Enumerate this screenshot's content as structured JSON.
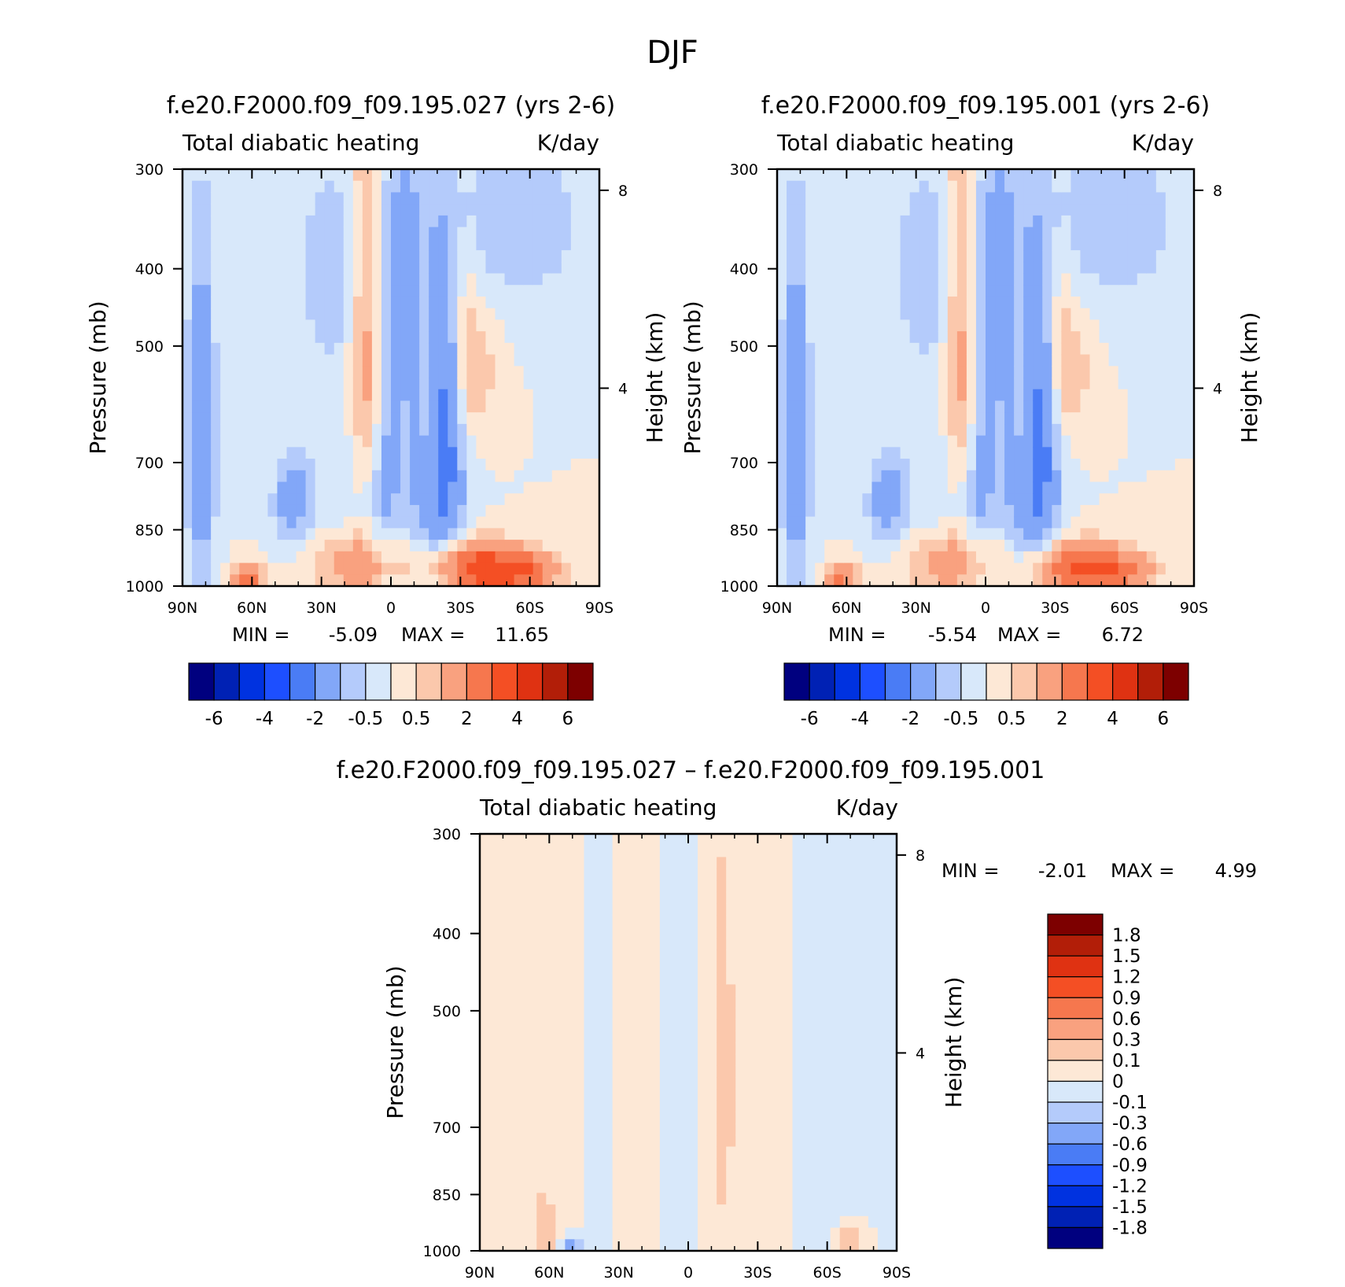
{
  "figure_title": "DJF",
  "colors": {
    "scale": [
      "#00007f",
      "#0021b4",
      "#0032e0",
      "#1d4fff",
      "#4a7cf5",
      "#82a7f8",
      "#b4cbfb",
      "#d8e8fa",
      "#fde8d6",
      "#fbc8ac",
      "#f9a17f",
      "#f6774e",
      "#f44f24",
      "#df3212",
      "#b21e08",
      "#7d0000"
    ]
  },
  "chart_data": [
    {
      "type": "heatmap",
      "title": "f.e20.F2000.f09_f09.195.027 (yrs 2-6)",
      "left_label": "Total diabatic heating",
      "right_label": "K/day",
      "xlabel": "",
      "ylabel": "Pressure (mb)",
      "y2label": "Height (km)",
      "x_ticks": [
        "90N",
        "60N",
        "30N",
        "0",
        "30S",
        "60S",
        "90S"
      ],
      "y_ticks": [
        "300",
        "400",
        "500",
        "700",
        "850",
        "1000"
      ],
      "y_tick_values": [
        300,
        400,
        500,
        700,
        850,
        1000
      ],
      "y2_ticks": [
        "8",
        "4"
      ],
      "y2_tick_values": [
        8,
        4
      ],
      "min_label": "MIN =",
      "min": "-5.09",
      "max_label": "MAX =",
      "max": "11.65",
      "colorbar_labels": [
        "-6",
        "-4",
        "-2",
        "-0.5",
        "0.5",
        "2",
        "4",
        "6"
      ],
      "colorbar_levels": [
        -7,
        -6,
        -5,
        -4,
        -3,
        -2,
        -1,
        -0.5,
        0,
        0.5,
        1,
        2,
        3,
        4,
        5,
        6,
        7
      ],
      "features": [
        {
          "x": 0,
          "p": 650,
          "v": -2.5,
          "sx": 20,
          "sp": 400
        },
        {
          "x": 23,
          "p": 680,
          "v": -2.3,
          "sx": 9,
          "sp": 260
        },
        {
          "x": -42,
          "p": 780,
          "v": -1.5,
          "sx": 9,
          "sp": 100
        },
        {
          "x": -82,
          "p": 650,
          "v": -2.0,
          "sx": 6,
          "sp": 300
        },
        {
          "x": 54,
          "p": 350,
          "v": -1.0,
          "sx": 28,
          "sp": 90
        },
        {
          "x": -22,
          "p": 400,
          "v": -0.7,
          "sx": 25,
          "sp": 110
        },
        {
          "x": 15,
          "p": 580,
          "v": 0.4,
          "sx": 3,
          "sp": 180
        },
        {
          "x": 38,
          "p": 530,
          "v": 0.8,
          "sx": 9,
          "sp": 110
        },
        {
          "x": -10,
          "p": 520,
          "v": 3.0,
          "sx": 9,
          "sp": 320
        },
        {
          "x": 5,
          "p": 720,
          "v": 1.2,
          "sx": 6,
          "sp": 250
        },
        {
          "x": 16,
          "p": 620,
          "v": 1.0,
          "sx": 9,
          "sp": 220
        },
        {
          "x": 32,
          "p": 520,
          "v": 0.9,
          "sx": 5,
          "sp": 170
        },
        {
          "x": 38,
          "p": 950,
          "v": 3.5,
          "sx": 22,
          "sp": 70
        },
        {
          "x": -12,
          "p": 940,
          "v": 2.0,
          "sx": 20,
          "sp": 90
        },
        {
          "x": -62,
          "p": 980,
          "v": 2.5,
          "sx": 7,
          "sp": 40
        },
        {
          "x": 58,
          "p": 960,
          "v": 1.8,
          "sx": 15,
          "sp": 50
        }
      ]
    },
    {
      "type": "heatmap",
      "title": "f.e20.F2000.f09_f09.195.001 (yrs 2-6)",
      "left_label": "Total diabatic heating",
      "right_label": "K/day",
      "xlabel": "",
      "ylabel": "Pressure (mb)",
      "y2label": "Height (km)",
      "x_ticks": [
        "90N",
        "60N",
        "30N",
        "0",
        "30S",
        "60S",
        "90S"
      ],
      "y_ticks": [
        "300",
        "400",
        "500",
        "700",
        "850",
        "1000"
      ],
      "y_tick_values": [
        300,
        400,
        500,
        700,
        850,
        1000
      ],
      "y2_ticks": [
        "8",
        "4"
      ],
      "y2_tick_values": [
        8,
        4
      ],
      "min_label": "MIN =",
      "min": "-5.54",
      "max_label": "MAX =",
      "max": "6.72",
      "colorbar_labels": [
        "-6",
        "-4",
        "-2",
        "-0.5",
        "0.5",
        "2",
        "4",
        "6"
      ],
      "colorbar_levels": [
        -7,
        -6,
        -5,
        -4,
        -3,
        -2,
        -1,
        -0.5,
        0,
        0.5,
        1,
        2,
        3,
        4,
        5,
        6,
        7
      ],
      "features": [
        {
          "x": 0,
          "p": 650,
          "v": -2.5,
          "sx": 20,
          "sp": 400
        },
        {
          "x": 23,
          "p": 680,
          "v": -2.3,
          "sx": 9,
          "sp": 260
        },
        {
          "x": -42,
          "p": 780,
          "v": -1.5,
          "sx": 9,
          "sp": 100
        },
        {
          "x": -82,
          "p": 650,
          "v": -2.0,
          "sx": 6,
          "sp": 300
        },
        {
          "x": 54,
          "p": 350,
          "v": -1.0,
          "sx": 28,
          "sp": 90
        },
        {
          "x": -22,
          "p": 400,
          "v": -0.7,
          "sx": 25,
          "sp": 110
        },
        {
          "x": 15,
          "p": 580,
          "v": 0.4,
          "sx": 3,
          "sp": 180
        },
        {
          "x": 38,
          "p": 530,
          "v": 0.8,
          "sx": 9,
          "sp": 110
        },
        {
          "x": -10,
          "p": 520,
          "v": 3.0,
          "sx": 9,
          "sp": 320
        },
        {
          "x": 5,
          "p": 720,
          "v": 1.2,
          "sx": 6,
          "sp": 250
        },
        {
          "x": 16,
          "p": 620,
          "v": 1.0,
          "sx": 9,
          "sp": 220
        },
        {
          "x": 32,
          "p": 520,
          "v": 0.9,
          "sx": 5,
          "sp": 170
        },
        {
          "x": 38,
          "p": 950,
          "v": 3.0,
          "sx": 22,
          "sp": 70
        },
        {
          "x": -12,
          "p": 940,
          "v": 2.0,
          "sx": 20,
          "sp": 90
        },
        {
          "x": -62,
          "p": 980,
          "v": 2.2,
          "sx": 7,
          "sp": 40
        },
        {
          "x": 58,
          "p": 960,
          "v": 1.8,
          "sx": 15,
          "sp": 50
        }
      ]
    },
    {
      "type": "heatmap",
      "title": "f.e20.F2000.f09_f09.195.027 – f.e20.F2000.f09_f09.195.001",
      "left_label": "Total diabatic heating",
      "right_label": "K/day",
      "xlabel": "",
      "ylabel": "Pressure (mb)",
      "y2label": "Height (km)",
      "x_ticks": [
        "90N",
        "60N",
        "30N",
        "0",
        "30S",
        "60S",
        "90S"
      ],
      "y_ticks": [
        "300",
        "400",
        "500",
        "700",
        "850",
        "1000"
      ],
      "y_tick_values": [
        300,
        400,
        500,
        700,
        850,
        1000
      ],
      "y2_ticks": [
        "8",
        "4"
      ],
      "y2_tick_values": [
        8,
        4
      ],
      "min_label": "MIN =",
      "min": "-2.01",
      "max_label": "MAX =",
      "max": "4.99",
      "colorbar_labels": [
        "1.8",
        "1.5",
        "1.2",
        "0.9",
        "0.6",
        "0.3",
        "0.1",
        "0",
        "-0.1",
        "-0.3",
        "-0.6",
        "-0.9",
        "-1.2",
        "-1.5",
        "-1.8"
      ],
      "colorbar_levels": [
        -2.1,
        -1.8,
        -1.5,
        -1.2,
        -0.9,
        -0.6,
        -0.3,
        -0.1,
        0,
        0.1,
        0.3,
        0.6,
        0.9,
        1.2,
        1.5,
        1.8,
        2.1
      ],
      "features": [
        {
          "x": -70,
          "p": 600,
          "v": 0.06,
          "sx": 12,
          "sp": 400
        },
        {
          "x": -20,
          "p": 600,
          "v": 0.05,
          "sx": 8,
          "sp": 400
        },
        {
          "x": -5,
          "p": 550,
          "v": -0.08,
          "sx": 5,
          "sp": 400
        },
        {
          "x": -38,
          "p": 600,
          "v": -0.05,
          "sx": 4,
          "sp": 400
        },
        {
          "x": 15,
          "p": 600,
          "v": 0.25,
          "sx": 4,
          "sp": 300
        },
        {
          "x": 35,
          "p": 600,
          "v": 0.05,
          "sx": 10,
          "sp": 400
        },
        {
          "x": 55,
          "p": 600,
          "v": -0.05,
          "sx": 15,
          "sp": 400
        },
        {
          "x": -62,
          "p": 940,
          "v": 0.3,
          "sx": 4,
          "sp": 80
        },
        {
          "x": -50,
          "p": 990,
          "v": -0.6,
          "sx": 3,
          "sp": 20
        },
        {
          "x": 70,
          "p": 970,
          "v": 0.4,
          "sx": 5,
          "sp": 30
        }
      ]
    }
  ]
}
